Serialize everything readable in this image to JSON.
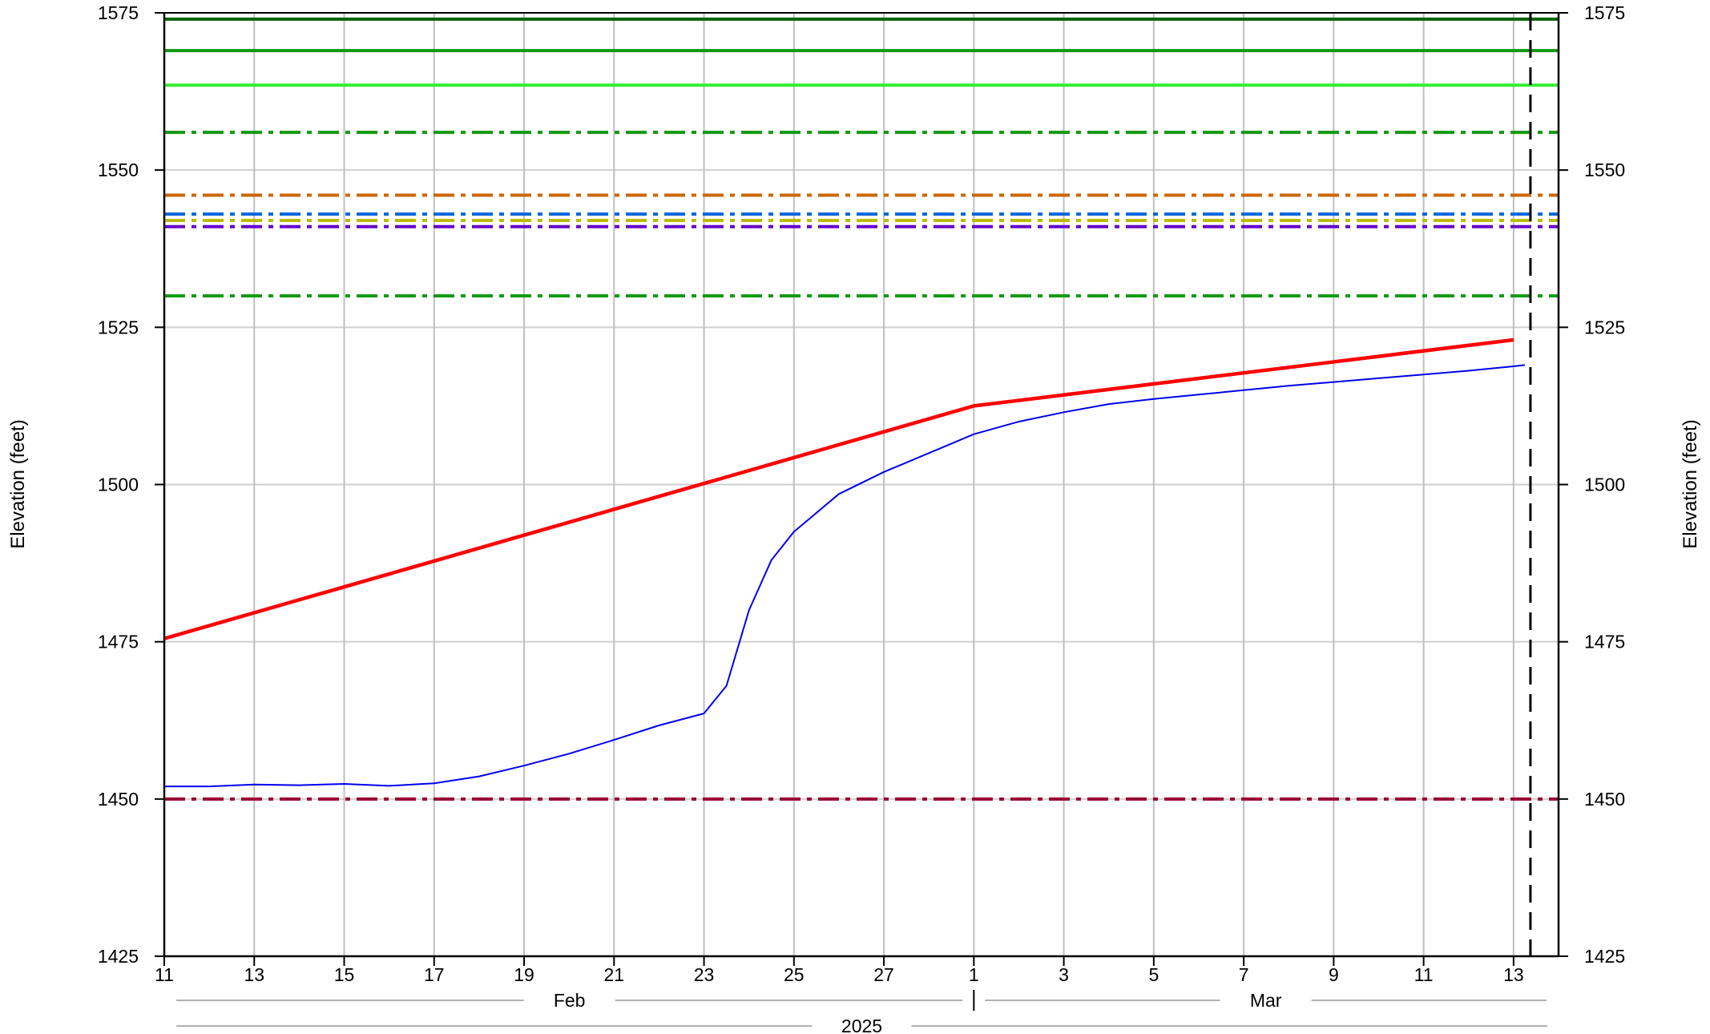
{
  "chart_data": {
    "type": "line",
    "ylabel_left": "Elevation (feet)",
    "ylabel_right": "Elevation (feet)",
    "ylim": [
      1425,
      1575
    ],
    "yticks": [
      1425,
      1450,
      1475,
      1500,
      1525,
      1550,
      1575
    ],
    "xlim": [
      "2025-02-11",
      "2025-03-14"
    ],
    "xticks": [
      {
        "date": "2025-02-11",
        "label": "11"
      },
      {
        "date": "2025-02-13",
        "label": "13"
      },
      {
        "date": "2025-02-15",
        "label": "15"
      },
      {
        "date": "2025-02-17",
        "label": "17"
      },
      {
        "date": "2025-02-19",
        "label": "19"
      },
      {
        "date": "2025-02-21",
        "label": "21"
      },
      {
        "date": "2025-02-23",
        "label": "23"
      },
      {
        "date": "2025-02-25",
        "label": "25"
      },
      {
        "date": "2025-02-27",
        "label": "27"
      },
      {
        "date": "2025-03-01",
        "label": "1"
      },
      {
        "date": "2025-03-03",
        "label": "3"
      },
      {
        "date": "2025-03-05",
        "label": "5"
      },
      {
        "date": "2025-03-07",
        "label": "7"
      },
      {
        "date": "2025-03-09",
        "label": "9"
      },
      {
        "date": "2025-03-11",
        "label": "11"
      },
      {
        "date": "2025-03-13",
        "label": "13"
      }
    ],
    "month_labels": [
      {
        "label": "Feb",
        "start": "2025-02-11",
        "end": "2025-03-01"
      },
      {
        "label": "Mar",
        "start": "2025-03-01",
        "end": "2025-03-14"
      }
    ],
    "year_label": "2025",
    "grid": true,
    "current_time_marker": "2025-03-13T09:00",
    "reference_lines": [
      {
        "y": 1574,
        "color": "#006400",
        "style": "solid"
      },
      {
        "y": 1569,
        "color": "#119911",
        "style": "solid"
      },
      {
        "y": 1563.5,
        "color": "#33ee33",
        "style": "solid"
      },
      {
        "y": 1556,
        "color": "#119911",
        "style": "dashdot"
      },
      {
        "y": 1546,
        "color": "#cc6600",
        "style": "dashdot"
      },
      {
        "y": 1543,
        "color": "#0066dd",
        "style": "dashdot"
      },
      {
        "y": 1542,
        "color": "#bbbb00",
        "style": "dashdot"
      },
      {
        "y": 1541,
        "color": "#6600cc",
        "style": "dashdot"
      },
      {
        "y": 1530,
        "color": "#119911",
        "style": "dashdot"
      },
      {
        "y": 1450,
        "color": "#990033",
        "style": "dashdot"
      }
    ],
    "series": [
      {
        "color": "#ff0000",
        "points": [
          [
            "2025-02-11",
            1475.5
          ],
          [
            "2025-03-01",
            1512.5
          ],
          [
            "2025-03-13",
            1523
          ]
        ]
      },
      {
        "color": "#0000ee",
        "points": [
          [
            "2025-02-11",
            1452
          ],
          [
            "2025-02-12",
            1452
          ],
          [
            "2025-02-13",
            1452.3
          ],
          [
            "2025-02-14",
            1452.2
          ],
          [
            "2025-02-15",
            1452.4
          ],
          [
            "2025-02-16",
            1452.1
          ],
          [
            "2025-02-17",
            1452.5
          ],
          [
            "2025-02-18",
            1453.6
          ],
          [
            "2025-02-19",
            1455.3
          ],
          [
            "2025-02-20",
            1457.2
          ],
          [
            "2025-02-21",
            1459.4
          ],
          [
            "2025-02-22",
            1461.7
          ],
          [
            "2025-02-23",
            1463.6
          ],
          [
            "2025-02-23T12:00",
            1468
          ],
          [
            "2025-02-24",
            1480
          ],
          [
            "2025-02-24T12:00",
            1488
          ],
          [
            "2025-02-25",
            1492.5
          ],
          [
            "2025-02-25T12:00",
            1495.5
          ],
          [
            "2025-02-26",
            1498.5
          ],
          [
            "2025-02-27",
            1502
          ],
          [
            "2025-02-28",
            1505
          ],
          [
            "2025-03-01",
            1508
          ],
          [
            "2025-03-02",
            1510
          ],
          [
            "2025-03-03",
            1511.5
          ],
          [
            "2025-03-04",
            1512.8
          ],
          [
            "2025-03-05",
            1513.6
          ],
          [
            "2025-03-06",
            1514.3
          ],
          [
            "2025-03-07",
            1515
          ],
          [
            "2025-03-08",
            1515.7
          ],
          [
            "2025-03-09",
            1516.3
          ],
          [
            "2025-03-10",
            1516.9
          ],
          [
            "2025-03-11",
            1517.5
          ],
          [
            "2025-03-12",
            1518.1
          ],
          [
            "2025-03-13",
            1518.8
          ],
          [
            "2025-03-13T06:00",
            1519
          ]
        ]
      }
    ]
  }
}
